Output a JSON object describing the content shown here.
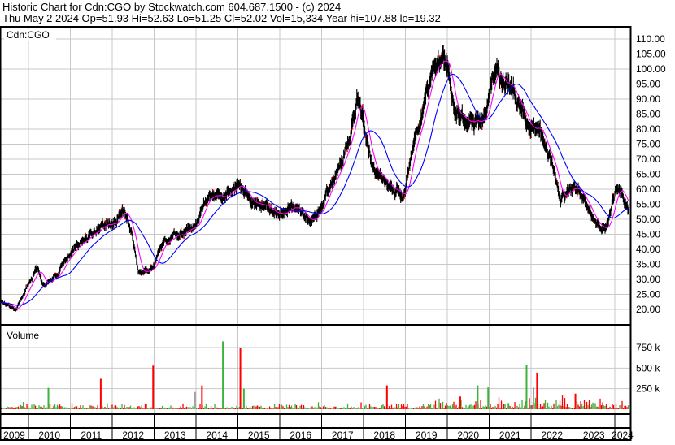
{
  "header": {
    "title": "Historic Chart for Cdn:CGO by Stockwatch.com 604.687.1500 - (c) 2024",
    "quote": "Thu May  2 2024  Op=51.93  Hi=52.63  Lo=51.25  Cl=52.02  Vol=15,334  Year hi=107.88  lo=19.32"
  },
  "colors": {
    "price_bars": "#000000",
    "down_ticks": "#ff0000",
    "short_ma": "#ff00ff",
    "long_ma": "#0000ff",
    "vol_up": "#3cb33c",
    "vol_down": "#ff0000",
    "vol_flat": "#a0a0a0",
    "grid": "#c8c8c8"
  },
  "chart_data": [
    {
      "type": "line",
      "title": "Cdn:CGO",
      "ylim": [
        17.5,
        112
      ],
      "grid": true,
      "y_ticks": [
        "110.00",
        "105.00",
        "100.00",
        "95.00",
        "90.00",
        "85.00",
        "80.00",
        "75.00",
        "70.00",
        "65.00",
        "60.00",
        "55.00",
        "50.00",
        "45.00",
        "40.00",
        "35.00",
        "30.00",
        "25.00",
        "20.00"
      ],
      "series": [
        {
          "x": [
            "2009-04",
            "2009-09",
            "2010-03",
            "2010-05",
            "2010-09",
            "2011-01",
            "2011-04",
            "2011-08",
            "2012-01",
            "2012-04",
            "2012-06",
            "2012-08",
            "2012-12",
            "2013-02",
            "2013-05",
            "2013-10",
            "2014-01",
            "2014-04",
            "2014-08",
            "2015-01",
            "2015-05",
            "2015-08",
            "2016-01",
            "2016-04",
            "2016-07",
            "2016-11",
            "2017-03",
            "2017-06",
            "2017-09",
            "2017-11",
            "2018-01",
            "2018-03",
            "2018-06",
            "2018-09",
            "2018-12",
            "2019-03",
            "2019-05",
            "2019-08",
            "2019-11",
            "2020-01",
            "2020-03",
            "2020-06",
            "2020-09",
            "2020-12",
            "2021-02",
            "2021-06",
            "2021-09",
            "2022-01",
            "2022-03",
            "2022-07",
            "2022-09",
            "2023-01",
            "2023-04",
            "2023-08",
            "2023-10",
            "2024-01",
            "2024-03",
            "2024-05"
          ],
          "y": [
            22,
            20,
            34,
            28,
            32,
            40,
            43,
            47,
            50,
            53,
            46,
            33,
            33,
            40,
            43,
            47,
            50,
            57,
            57,
            61,
            55,
            55,
            52,
            55,
            52,
            50,
            60,
            68,
            80,
            92,
            78,
            68,
            63,
            60,
            58,
            75,
            85,
            98,
            105,
            97,
            85,
            83,
            82,
            86,
            98,
            95,
            88,
            80,
            78,
            68,
            57,
            60,
            55,
            48,
            47,
            61,
            58,
            52
          ]
        }
      ]
    },
    {
      "type": "bar",
      "title": "Volume",
      "ylim": [
        0,
        900000
      ],
      "y_ticks": [
        "750 k",
        "500 k",
        "250 k"
      ],
      "baseline_volume": 30000,
      "spikes": [
        {
          "x": "2010-06",
          "v": 260000,
          "dir": "up"
        },
        {
          "x": "2011-09",
          "v": 370000,
          "dir": "down"
        },
        {
          "x": "2012-12",
          "v": 530000,
          "dir": "down"
        },
        {
          "x": "2013-12",
          "v": 210000,
          "dir": "flat"
        },
        {
          "x": "2014-02",
          "v": 290000,
          "dir": "down"
        },
        {
          "x": "2014-08",
          "v": 825000,
          "dir": "up"
        },
        {
          "x": "2015-01",
          "v": 745000,
          "dir": "down"
        },
        {
          "x": "2015-02",
          "v": 250000,
          "dir": "up"
        },
        {
          "x": "2018-07",
          "v": 290000,
          "dir": "down"
        },
        {
          "x": "2020-04",
          "v": 155000,
          "dir": "down"
        },
        {
          "x": "2020-09",
          "v": 290000,
          "dir": "up"
        },
        {
          "x": "2020-12",
          "v": 265000,
          "dir": "up"
        },
        {
          "x": "2021-11",
          "v": 535000,
          "dir": "up"
        },
        {
          "x": "2022-01",
          "v": 265000,
          "dir": "flat"
        },
        {
          "x": "2022-02",
          "v": 445000,
          "dir": "down"
        },
        {
          "x": "2023-01",
          "v": 190000,
          "dir": "down"
        }
      ],
      "x_ticks": [
        "2009",
        "2010",
        "2011",
        "2012",
        "2013",
        "2014",
        "2015",
        "2016",
        "2017",
        "2018",
        "2019",
        "2020",
        "2021",
        "2022",
        "2023",
        "2024"
      ]
    }
  ]
}
